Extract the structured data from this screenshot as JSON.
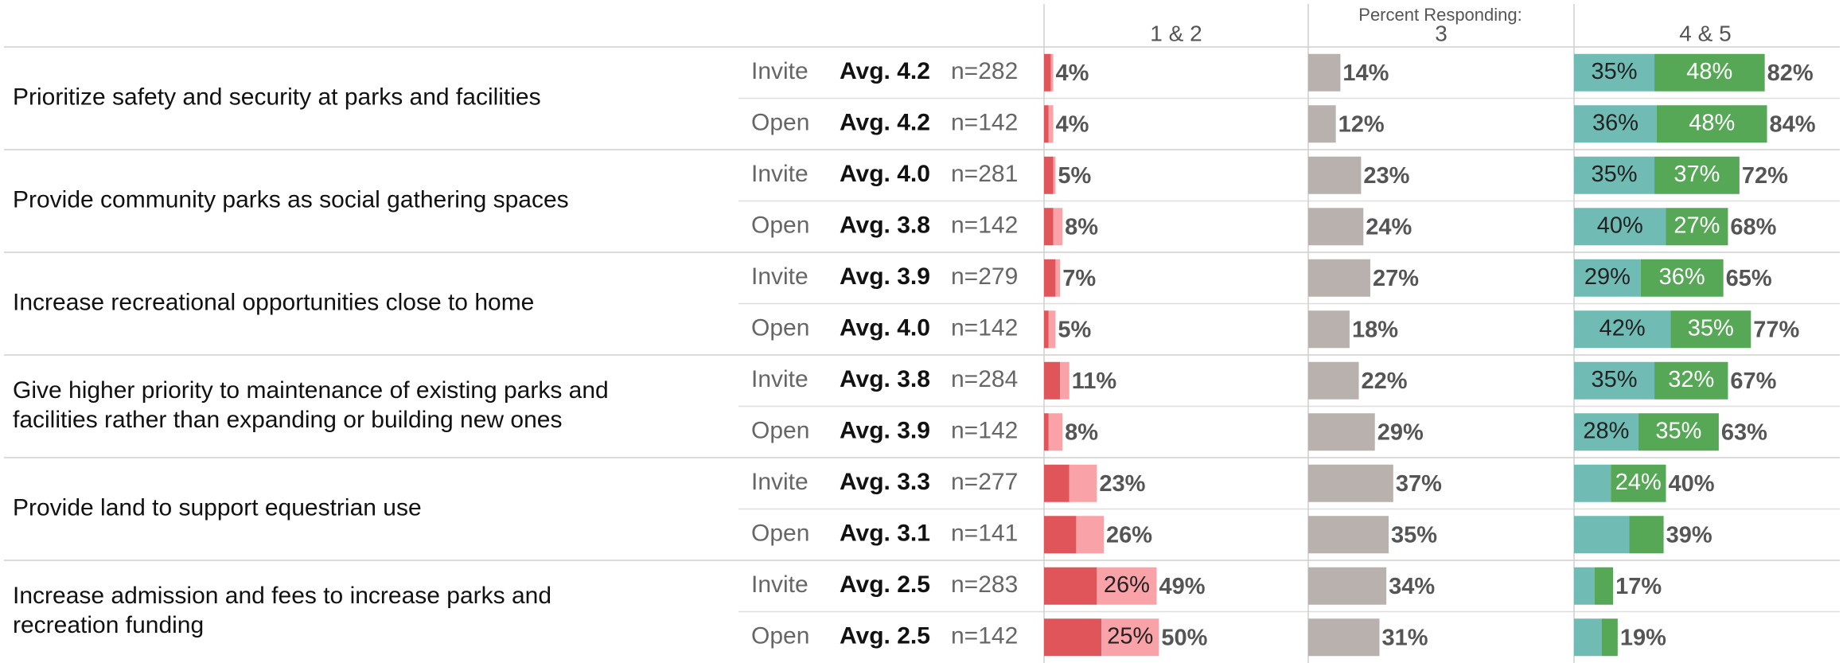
{
  "chart_data": {
    "type": "stacked-bar-table",
    "header": "Percent Responding:",
    "columns": [
      "1 & 2",
      "3",
      "4 & 5"
    ],
    "colors": [
      "#e0555a",
      "#f9a3a9",
      "#b9b1ae",
      "#70bcb5",
      "#56a756"
    ],
    "xlim": [
      0,
      115
    ],
    "items": [
      {
        "label": [
          "Prioritize safety and security at parks and facilities"
        ],
        "rows": [
          {
            "group": "Invite",
            "avg": "Avg. 4.2",
            "n": "n=282",
            "values": [
              3,
              1,
              14,
              35,
              48
            ],
            "value_labels": [
              null,
              null,
              "14%",
              "35%",
              "48%"
            ],
            "totals": [
              4,
              82
            ],
            "total_labels": [
              "4%",
              "82%"
            ]
          },
          {
            "group": "Open",
            "avg": "Avg. 4.2",
            "n": "n=142",
            "values": [
              2,
              2,
              12,
              36,
              48
            ],
            "value_labels": [
              null,
              null,
              "12%",
              "36%",
              "48%"
            ],
            "totals": [
              4,
              84
            ],
            "total_labels": [
              "4%",
              "84%"
            ]
          }
        ]
      },
      {
        "label": [
          "Provide community parks as social gathering spaces"
        ],
        "rows": [
          {
            "group": "Invite",
            "avg": "Avg. 4.0",
            "n": "n=281",
            "values": [
              4,
              1,
              23,
              35,
              37
            ],
            "value_labels": [
              null,
              null,
              "23%",
              "35%",
              "37%"
            ],
            "totals": [
              5,
              72
            ],
            "total_labels": [
              "5%",
              "72%"
            ]
          },
          {
            "group": "Open",
            "avg": "Avg. 3.8",
            "n": "n=142",
            "values": [
              4,
              4,
              24,
              40,
              27
            ],
            "value_labels": [
              null,
              null,
              "24%",
              "40%",
              "27%"
            ],
            "totals": [
              8,
              68
            ],
            "total_labels": [
              "8%",
              "68%"
            ]
          }
        ]
      },
      {
        "label": [
          "Increase recreational opportunities close to home"
        ],
        "rows": [
          {
            "group": "Invite",
            "avg": "Avg. 3.9",
            "n": "n=279",
            "values": [
              5,
              2,
              27,
              29,
              36
            ],
            "value_labels": [
              null,
              null,
              "27%",
              "29%",
              "36%"
            ],
            "totals": [
              7,
              65
            ],
            "total_labels": [
              "7%",
              "65%"
            ]
          },
          {
            "group": "Open",
            "avg": "Avg. 4.0",
            "n": "n=142",
            "values": [
              2,
              3,
              18,
              42,
              35
            ],
            "value_labels": [
              null,
              null,
              "18%",
              "42%",
              "35%"
            ],
            "totals": [
              5,
              77
            ],
            "total_labels": [
              "5%",
              "77%"
            ]
          }
        ]
      },
      {
        "label": [
          "Give higher priority to maintenance of existing parks and",
          "facilities rather than expanding or building new ones"
        ],
        "rows": [
          {
            "group": "Invite",
            "avg": "Avg. 3.8",
            "n": "n=284",
            "values": [
              7,
              4,
              22,
              35,
              32
            ],
            "value_labels": [
              null,
              null,
              "22%",
              "35%",
              "32%"
            ],
            "totals": [
              11,
              67
            ],
            "total_labels": [
              "11%",
              "67%"
            ]
          },
          {
            "group": "Open",
            "avg": "Avg. 3.9",
            "n": "n=142",
            "values": [
              2,
              6,
              29,
              28,
              35
            ],
            "value_labels": [
              null,
              null,
              "29%",
              "28%",
              "35%"
            ],
            "totals": [
              8,
              63
            ],
            "total_labels": [
              "8%",
              "63%"
            ]
          }
        ]
      },
      {
        "label": [
          "Provide land to support equestrian use"
        ],
        "rows": [
          {
            "group": "Invite",
            "avg": "Avg. 3.3",
            "n": "n=277",
            "values": [
              11,
              12,
              37,
              16,
              24
            ],
            "value_labels": [
              null,
              null,
              "37%",
              null,
              "24%"
            ],
            "totals": [
              23,
              40
            ],
            "total_labels": [
              "23%",
              "40%"
            ]
          },
          {
            "group": "Open",
            "avg": "Avg. 3.1",
            "n": "n=141",
            "values": [
              14,
              12,
              35,
              24,
              15
            ],
            "value_labels": [
              null,
              null,
              "35%",
              null,
              null
            ],
            "totals": [
              26,
              39
            ],
            "total_labels": [
              "26%",
              "39%"
            ]
          }
        ]
      },
      {
        "label": [
          "Increase admission and fees to increase parks and",
          "recreation funding"
        ],
        "rows": [
          {
            "group": "Invite",
            "avg": "Avg. 2.5",
            "n": "n=283",
            "values": [
              23,
              26,
              34,
              9,
              8
            ],
            "value_labels": [
              null,
              "26%",
              "34%",
              null,
              null
            ],
            "totals": [
              49,
              17
            ],
            "total_labels": [
              "49%",
              "17%"
            ]
          },
          {
            "group": "Open",
            "avg": "Avg. 2.5",
            "n": "n=142",
            "values": [
              25,
              25,
              31,
              12,
              7
            ],
            "value_labels": [
              null,
              "25%",
              "31%",
              null,
              null
            ],
            "totals": [
              50,
              19
            ],
            "total_labels": [
              "50%",
              "19%"
            ]
          }
        ]
      }
    ]
  }
}
